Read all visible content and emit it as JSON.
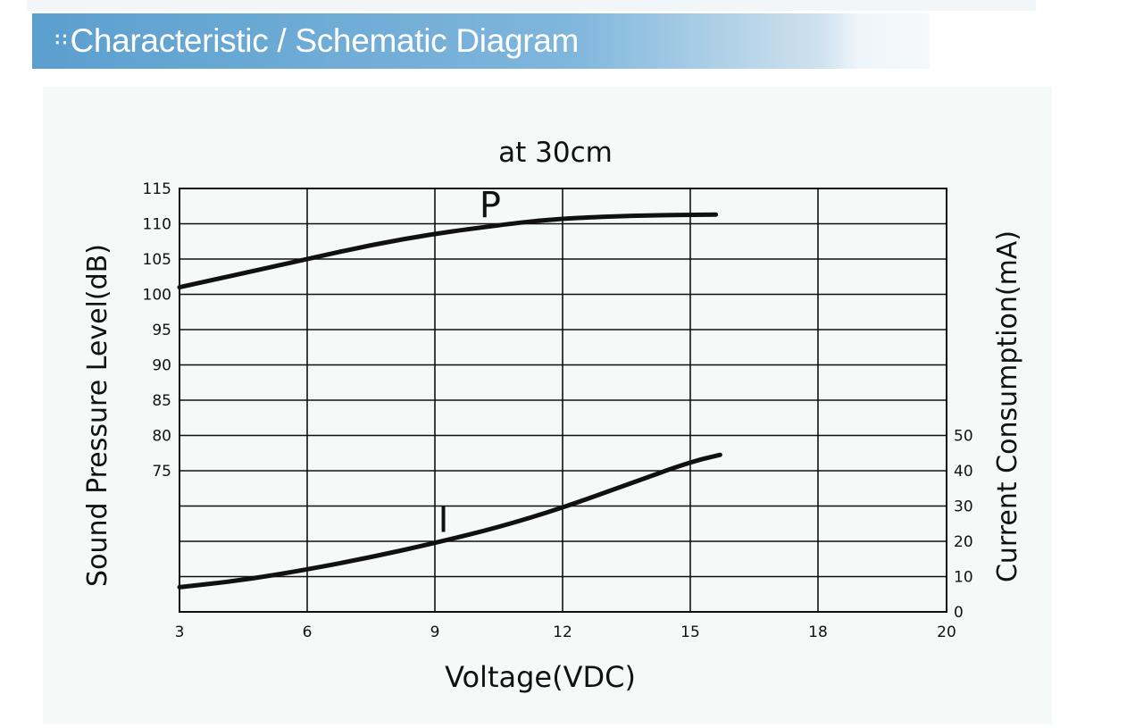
{
  "header": {
    "title": "Characteristic / Schematic Diagram",
    "icon": "dots-icon"
  },
  "chart_data": {
    "type": "line",
    "title": "at 30cm",
    "xlabel": "Voltage(VDC)",
    "ylabel_left": "Sound Pressure Level(dB)",
    "ylabel_right": "Current Consumption(mA)",
    "x_ticks": [
      3,
      6,
      9,
      12,
      15,
      18,
      20
    ],
    "x_tick_labels": [
      "3",
      "6",
      "9",
      "12",
      "15",
      "18",
      "20"
    ],
    "y_left_ticks": [
      "115",
      "110",
      "105",
      "100",
      "95",
      "90",
      "85",
      "80",
      "75"
    ],
    "y_left_values": [
      115,
      110,
      105,
      100,
      95,
      90,
      85,
      80,
      75
    ],
    "y_left_lim": [
      55,
      115
    ],
    "y_right_ticks": [
      "50",
      "40",
      "30",
      "20",
      "10",
      "0"
    ],
    "y_right_values": [
      50,
      40,
      30,
      20,
      10,
      0
    ],
    "y_right_lim": [
      0,
      50
    ],
    "grid": true,
    "series": [
      {
        "name": "P",
        "axis": "left",
        "x": [
          3,
          4.5,
          6,
          7.5,
          9,
          10.5,
          11.5,
          12.5,
          14,
          15.6
        ],
        "y": [
          101,
          103,
          105,
          107,
          108.6,
          109.8,
          110.5,
          110.9,
          111.2,
          111.3
        ]
      },
      {
        "name": "I",
        "axis": "right",
        "x": [
          3,
          4.5,
          6,
          7.5,
          9,
          10.5,
          12,
          13.5,
          15,
          15.7
        ],
        "y": [
          7,
          9,
          12,
          15.5,
          19.5,
          24,
          29.5,
          36,
          42.5,
          44.5
        ]
      }
    ]
  }
}
